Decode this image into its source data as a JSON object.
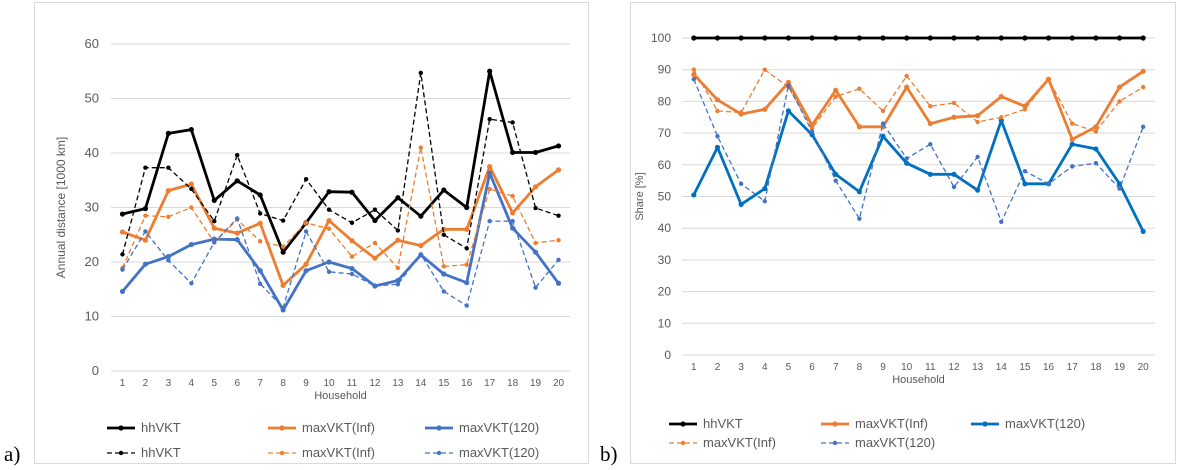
{
  "panel_labels": {
    "a": "a)",
    "b": "b)"
  },
  "colors": {
    "black": "#000000",
    "orange": "#ed7d31",
    "blue_a": "#4472c4",
    "blue_b": "#0070c0",
    "grid": "#d9d9d9",
    "text": "#595959"
  },
  "chart_data": [
    {
      "type": "line",
      "title": "",
      "xlabel": "Household",
      "ylabel": "Annual distance [1000 km]",
      "x": [
        1,
        2,
        3,
        4,
        5,
        6,
        7,
        8,
        9,
        10,
        11,
        12,
        13,
        14,
        15,
        16,
        17,
        18,
        19,
        20
      ],
      "ylim": [
        0,
        60
      ],
      "yticks": [
        0,
        10,
        20,
        30,
        40,
        50,
        60
      ],
      "grid": true,
      "legend_position": "bottom",
      "series": [
        {
          "name": "hhVKT",
          "style": "solid",
          "color": "#000000",
          "values": [
            28.8,
            29.8,
            43.6,
            44.3,
            31.3,
            34.9,
            32.3,
            21.8,
            27.2,
            32.9,
            32.8,
            27.6,
            31.8,
            28.4,
            33.2,
            30.0,
            55.0,
            40.1,
            40.1,
            41.3
          ]
        },
        {
          "name": "maxVKT(Inf)",
          "style": "solid",
          "color": "#ed7d31",
          "values": [
            25.5,
            24.0,
            33.1,
            34.3,
            26.2,
            25.3,
            27.1,
            15.7,
            19.6,
            27.6,
            23.9,
            20.7,
            24.0,
            23.0,
            26.0,
            26.0,
            37.5,
            29.0,
            33.8,
            36.9
          ]
        },
        {
          "name": "maxVKT(120)",
          "style": "solid",
          "color": "#4472c4",
          "values": [
            14.6,
            19.6,
            21.0,
            23.2,
            24.2,
            24.1,
            18.4,
            11.2,
            18.4,
            20.0,
            18.8,
            15.6,
            16.6,
            21.3,
            17.8,
            16.2,
            36.3,
            26.2,
            21.8,
            16.1
          ]
        },
        {
          "name": "hhVKT",
          "style": "dashed",
          "color": "#000000",
          "values": [
            21.4,
            37.3,
            37.3,
            33.4,
            27.5,
            39.6,
            28.9,
            27.6,
            35.2,
            29.6,
            27.2,
            29.6,
            25.8,
            54.7,
            25.0,
            22.5,
            46.2,
            45.6,
            29.9,
            28.5
          ]
        },
        {
          "name": "maxVKT(Inf)",
          "style": "dashed",
          "color": "#ed7d31",
          "values": [
            18.9,
            28.5,
            28.3,
            30.0,
            23.6,
            27.8,
            23.8,
            22.8,
            27.2,
            26.1,
            21.0,
            23.5,
            18.9,
            41.0,
            19.2,
            19.5,
            33.4,
            32.1,
            23.5,
            24.0
          ]
        },
        {
          "name": "maxVKT(120)",
          "style": "dashed",
          "color": "#4472c4",
          "values": [
            18.6,
            25.6,
            20.3,
            16.1,
            23.6,
            28.0,
            16.0,
            11.6,
            25.6,
            18.2,
            17.8,
            15.6,
            15.9,
            21.4,
            14.6,
            12.0,
            27.5,
            27.5,
            15.3,
            20.4
          ]
        }
      ]
    },
    {
      "type": "line",
      "title": "",
      "xlabel": "Household",
      "ylabel": "Share [%]",
      "x": [
        1,
        2,
        3,
        4,
        5,
        6,
        7,
        8,
        9,
        10,
        11,
        12,
        13,
        14,
        15,
        16,
        17,
        18,
        19,
        20
      ],
      "ylim": [
        0,
        100
      ],
      "yticks": [
        0,
        10,
        20,
        30,
        40,
        50,
        60,
        70,
        80,
        90,
        100
      ],
      "grid": true,
      "legend_position": "bottom",
      "series": [
        {
          "name": "hhVKT",
          "style": "solid",
          "color": "#000000",
          "values": [
            100,
            100,
            100,
            100,
            100,
            100,
            100,
            100,
            100,
            100,
            100,
            100,
            100,
            100,
            100,
            100,
            100,
            100,
            100,
            100
          ]
        },
        {
          "name": "maxVKT(Inf)",
          "style": "solid",
          "color": "#ed7d31",
          "values": [
            88.5,
            80.5,
            76.0,
            77.5,
            86.0,
            72.5,
            83.5,
            72.0,
            72.0,
            84.5,
            73.0,
            75.0,
            75.5,
            81.5,
            78.5,
            87.0,
            68.0,
            72.0,
            84.5,
            89.5
          ]
        },
        {
          "name": "maxVKT(120)",
          "style": "solid",
          "color": "#0070c0",
          "values": [
            50.5,
            65.5,
            47.5,
            52.5,
            77.0,
            69.5,
            57.0,
            51.5,
            69.0,
            60.5,
            57.0,
            57.0,
            52.0,
            74.0,
            54.0,
            54.0,
            66.5,
            65.0,
            54.0,
            39.0
          ]
        },
        {
          "name": "maxVKT(Inf)",
          "style": "dashed",
          "color": "#ed7d31",
          "values": [
            90.0,
            77.0,
            76.5,
            90.0,
            84.5,
            71.5,
            81.5,
            84.0,
            77.0,
            88.0,
            78.5,
            79.5,
            73.5,
            75.0,
            77.5,
            87.0,
            73.0,
            70.5,
            80.0,
            84.5
          ]
        },
        {
          "name": "maxVKT(120)",
          "style": "dashed",
          "color": "#4472c4",
          "values": [
            87.0,
            69.0,
            54.0,
            48.5,
            85.0,
            70.5,
            55.0,
            43.0,
            73.0,
            62.0,
            66.5,
            53.0,
            62.5,
            42.0,
            58.0,
            54.0,
            59.5,
            60.5,
            52.5,
            72.0
          ]
        }
      ]
    }
  ]
}
